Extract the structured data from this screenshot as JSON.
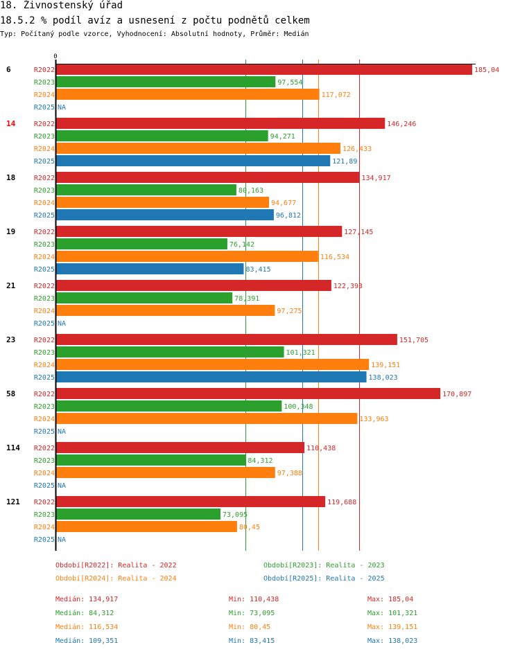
{
  "header": {
    "title": "18. Živnostenský úřad",
    "subtitle": "18.5.2 % podíl avíz a usnesení z počtu podnětů celkem",
    "meta": "Typ: Počítaný podle vzorce, Vyhodnocení: Absolutní hodnoty, Průměr: Medián"
  },
  "colors": {
    "R2022": "#d62728",
    "R2023": "#2ca02c",
    "R2024": "#ff7f0e",
    "R2025": "#1f77b4",
    "highlight": "#ff0000",
    "axis": "#000000"
  },
  "chart_data": {
    "type": "bar",
    "orientation": "horizontal",
    "title": "18.5.2 % podíl avíz a usnesení z počtu podnětů celkem",
    "xlabel": "",
    "ylabel": "",
    "x_tick_labels": [
      "0"
    ],
    "xlim": [
      0,
      185.04
    ],
    "na_label": "NA",
    "series_names": [
      "R2022",
      "R2023",
      "R2024",
      "R2025"
    ],
    "categories": [
      "6",
      "14",
      "18",
      "19",
      "21",
      "23",
      "58",
      "114",
      "121"
    ],
    "highlighted_category": "14",
    "series": [
      {
        "name": "R2022",
        "values": [
          185.04,
          146.246,
          134.917,
          127.145,
          122.393,
          151.705,
          170.897,
          110.438,
          119.688
        ],
        "labels": [
          "185,04",
          "146,246",
          "134,917",
          "127,145",
          "122,393",
          "151,705",
          "170,897",
          "110,438",
          "119,688"
        ]
      },
      {
        "name": "R2023",
        "values": [
          97.554,
          94.271,
          80.163,
          76.142,
          78.391,
          101.321,
          100.348,
          84.312,
          73.095
        ],
        "labels": [
          "97,554",
          "94,271",
          "80,163",
          "76,142",
          "78,391",
          "101,321",
          "100,348",
          "84,312",
          "73,095"
        ]
      },
      {
        "name": "R2024",
        "values": [
          117.072,
          126.433,
          94.677,
          116.534,
          97.275,
          139.151,
          133.963,
          97.388,
          80.45
        ],
        "labels": [
          "117,072",
          "126,433",
          "94,677",
          "116,534",
          "97,275",
          "139,151",
          "133,963",
          "97,388",
          "80,45"
        ]
      },
      {
        "name": "R2025",
        "values": [
          null,
          121.89,
          96.812,
          83.415,
          null,
          138.023,
          null,
          null,
          null
        ],
        "labels": [
          "NA",
          "121,89",
          "96,812",
          "83,415",
          "NA",
          "138,023",
          "NA",
          "NA",
          "NA"
        ]
      }
    ],
    "median_lines": [
      {
        "series": "R2022",
        "value": 134.917
      },
      {
        "series": "R2023",
        "value": 84.312
      },
      {
        "series": "R2024",
        "value": 116.534
      },
      {
        "series": "R2025",
        "value": 109.351
      }
    ],
    "legend": [
      {
        "series": "R2022",
        "text": "Období[R2022]: Realita - 2022"
      },
      {
        "series": "R2023",
        "text": "Období[R2023]: Realita - 2023"
      },
      {
        "series": "R2024",
        "text": "Období[R2024]: Realita - 2024"
      },
      {
        "series": "R2025",
        "text": "Období[R2025]: Realita - 2025"
      }
    ],
    "legend_position": "bottom",
    "stats": [
      {
        "series": "R2022",
        "median": "Medián: 134,917",
        "min": "Min: 110,438",
        "max": "Max: 185,04"
      },
      {
        "series": "R2023",
        "median": "Medián: 84,312",
        "min": "Min: 73,095",
        "max": "Max: 101,321"
      },
      {
        "series": "R2024",
        "median": "Medián: 116,534",
        "min": "Min: 80,45",
        "max": "Max: 139,151"
      },
      {
        "series": "R2025",
        "median": "Medián: 109,351",
        "min": "Min: 83,415",
        "max": "Max: 138,023"
      }
    ]
  }
}
